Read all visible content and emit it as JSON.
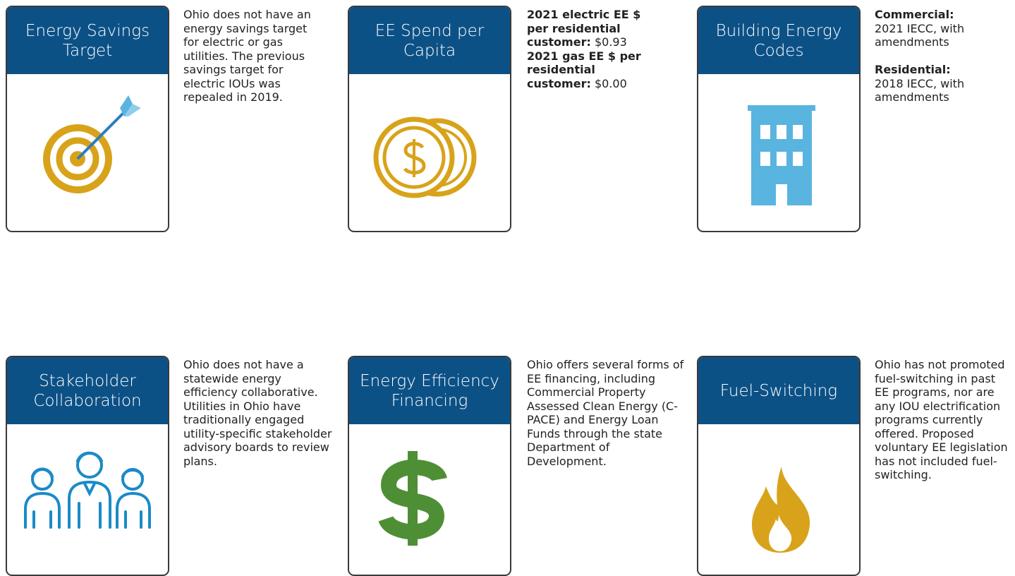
{
  "cards": [
    {
      "title": "Energy Savings Target",
      "text": "Ohio does not have an energy savings target for electric or gas utilities. The previous savings target for electric IOUs was repealed in 2019."
    },
    {
      "title": "EE Spend per Capita",
      "items": [
        {
          "label": "2021 electric EE $ per residential customer:",
          "value": "$0.93"
        },
        {
          "label": "2021 gas EE $ per residential customer:",
          "value": "$0.00"
        }
      ]
    },
    {
      "title": "Building Energy Codes",
      "items": [
        {
          "label": "Commercial:",
          "value": "2021 IECC, with amendments"
        },
        {
          "label": "Residential:",
          "value": "2018 IECC, with amendments"
        }
      ]
    },
    {
      "title": "Stakeholder Collaboration",
      "text": "Ohio does not have a statewide energy efficiency collaborative. Utilities in Ohio have traditionally engaged utility-specific stakeholder advisory boards to review plans."
    },
    {
      "title": "Energy Efficiency Financing",
      "text": "Ohio offers several forms of EE financing, including Commercial Property Assessed Clean Energy (C-PACE) and Energy Loan Funds through the state Department of Development."
    },
    {
      "title": "Fuel-Switching",
      "text": "Ohio has not promoted fuel-switching in past EE programs, nor are any IOU electrification programs currently offered. Proposed voluntary EE legislation has not included fuel-switching."
    }
  ]
}
